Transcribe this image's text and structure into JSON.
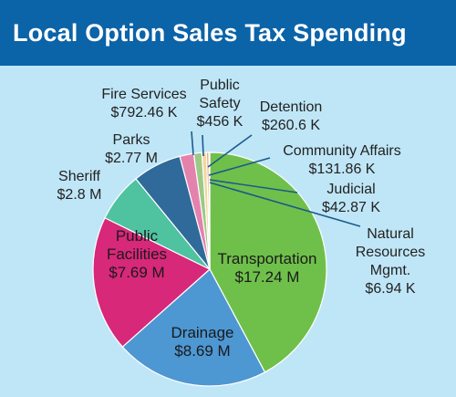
{
  "chart_data": {
    "type": "pie",
    "title": "Local Option Sales Tax Spending",
    "start": "12 o'clock",
    "direction": "clockwise",
    "slices": [
      {
        "name": "Transportation",
        "value_text": "$17.24 M",
        "value": 17240000,
        "color": "#6fc04b"
      },
      {
        "name": "Drainage",
        "value_text": "$8.69 M",
        "value": 8690000,
        "color": "#4d97d3"
      },
      {
        "name": "Public Facilities",
        "value_text": "$7.69 M",
        "value": 7690000,
        "color": "#d7287a"
      },
      {
        "name": "Sheriff",
        "value_text": "$2.8 M",
        "value": 2800000,
        "color": "#4fc2a0"
      },
      {
        "name": "Parks",
        "value_text": "$2.77 M",
        "value": 2770000,
        "color": "#2f6a9a"
      },
      {
        "name": "Fire Services",
        "value_text": "$792.46 K",
        "value": 792460,
        "color": "#e482ae"
      },
      {
        "name": "Public Safety",
        "value_text": "$456 K",
        "value": 456000,
        "color": "#9cc986"
      },
      {
        "name": "Detention",
        "value_text": "$260.6 K",
        "value": 260600,
        "color": "#f2d79a"
      },
      {
        "name": "Community Affairs",
        "value_text": "$131.86 K",
        "value": 131860,
        "color": "#ef9b7e"
      },
      {
        "name": "Judicial",
        "value_text": "$42.87 K",
        "value": 42870,
        "color": "#2d7a5a"
      },
      {
        "name": "Natural Resources Mgmt.",
        "value_text": "$6.94 K",
        "value": 6940,
        "color": "#9fd8ee"
      }
    ]
  },
  "labels": {
    "transportation": {
      "name": "Transportation",
      "value": "$17.24 M"
    },
    "drainage": {
      "name": "Drainage",
      "value": "$8.69 M"
    },
    "public_facilities": {
      "line1": "Public",
      "line2": "Facilities",
      "value": "$7.69 M"
    },
    "sheriff": {
      "name": "Sheriff",
      "value": "$2.8 M"
    },
    "parks": {
      "name": "Parks",
      "value": "$2.77 M"
    },
    "fire_services": {
      "name": "Fire Services",
      "value": "$792.46 K"
    },
    "public_safety": {
      "line1": "Public",
      "line2": "Safety",
      "value": "$456 K"
    },
    "detention": {
      "name": "Detention",
      "value": "$260.6 K"
    },
    "community_affairs": {
      "name": "Community Affairs",
      "value": "$131.86 K"
    },
    "judicial": {
      "name": "Judicial",
      "value": "$42.87 K"
    },
    "natural_resources": {
      "line1": "Natural",
      "line2": "Resources",
      "line3": "Mgmt.",
      "value": "$6.94 K"
    }
  }
}
